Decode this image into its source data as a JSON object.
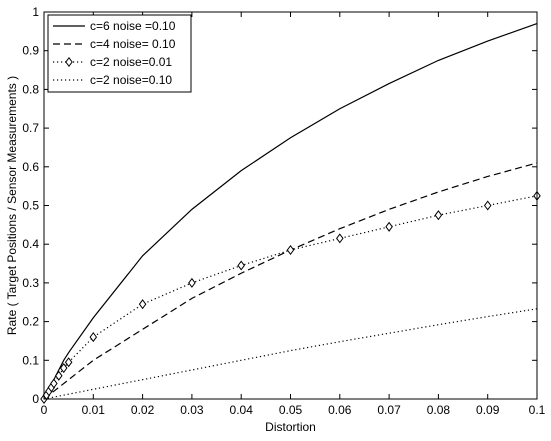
{
  "chart_data": {
    "type": "line",
    "title": "",
    "xlabel": "Distortion",
    "ylabel": "Rate  (  Target Positions  /  Sensor Measurements  )",
    "xlim": [
      0,
      0.1
    ],
    "ylim": [
      0,
      1
    ],
    "x_ticks": [
      0,
      0.01,
      0.02,
      0.03,
      0.04,
      0.05,
      0.06,
      0.07,
      0.08,
      0.09,
      0.1
    ],
    "x_tick_labels": [
      "0",
      "0.01",
      "0.02",
      "0.03",
      "0.04",
      "0.05",
      "0.06",
      "0.07",
      "0.08",
      "0.09",
      "0.1"
    ],
    "y_ticks": [
      0,
      0.1,
      0.2,
      0.3,
      0.4,
      0.5,
      0.6,
      0.7,
      0.8,
      0.9,
      1
    ],
    "y_tick_labels": [
      "0",
      "0.1",
      "0.2",
      "0.3",
      "0.4",
      "0.5",
      "0.6",
      "0.7",
      "0.8",
      "0.9",
      "1"
    ],
    "grid": false,
    "legend_position": "top-left",
    "series": [
      {
        "name": "c=6 noise =0.10",
        "style": "solid",
        "marker": "none",
        "x": [
          0,
          0.001,
          0.002,
          0.003,
          0.004,
          0.005,
          0.01,
          0.02,
          0.03,
          0.04,
          0.05,
          0.06,
          0.07,
          0.08,
          0.09,
          0.1
        ],
        "y": [
          0,
          0.025,
          0.05,
          0.075,
          0.1,
          0.12,
          0.21,
          0.37,
          0.49,
          0.59,
          0.675,
          0.75,
          0.815,
          0.875,
          0.925,
          0.97
        ]
      },
      {
        "name": "c=4 noise= 0.10",
        "style": "dashed",
        "marker": "none",
        "x": [
          0,
          0.005,
          0.01,
          0.02,
          0.03,
          0.04,
          0.05,
          0.06,
          0.07,
          0.08,
          0.09,
          0.1
        ],
        "y": [
          0,
          0.05,
          0.1,
          0.18,
          0.26,
          0.325,
          0.385,
          0.44,
          0.49,
          0.535,
          0.575,
          0.61
        ]
      },
      {
        "name": "c=2 noise=0.01",
        "style": "dotted",
        "marker": "diamond",
        "x": [
          0,
          0.0005,
          0.001,
          0.0015,
          0.002,
          0.003,
          0.004,
          0.005,
          0.01,
          0.02,
          0.03,
          0.04,
          0.05,
          0.06,
          0.07,
          0.08,
          0.09,
          0.1
        ],
        "y": [
          0,
          0.01,
          0.02,
          0.03,
          0.04,
          0.06,
          0.08,
          0.095,
          0.16,
          0.245,
          0.3,
          0.345,
          0.385,
          0.415,
          0.445,
          0.475,
          0.5,
          0.525
        ]
      },
      {
        "name": "c=2 noise=0.10",
        "style": "dotted",
        "marker": "none",
        "x": [
          0,
          0.01,
          0.02,
          0.03,
          0.04,
          0.05,
          0.06,
          0.07,
          0.08,
          0.09,
          0.1
        ],
        "y": [
          0,
          0.025,
          0.05,
          0.075,
          0.1,
          0.125,
          0.148,
          0.17,
          0.192,
          0.213,
          0.233
        ]
      }
    ]
  }
}
